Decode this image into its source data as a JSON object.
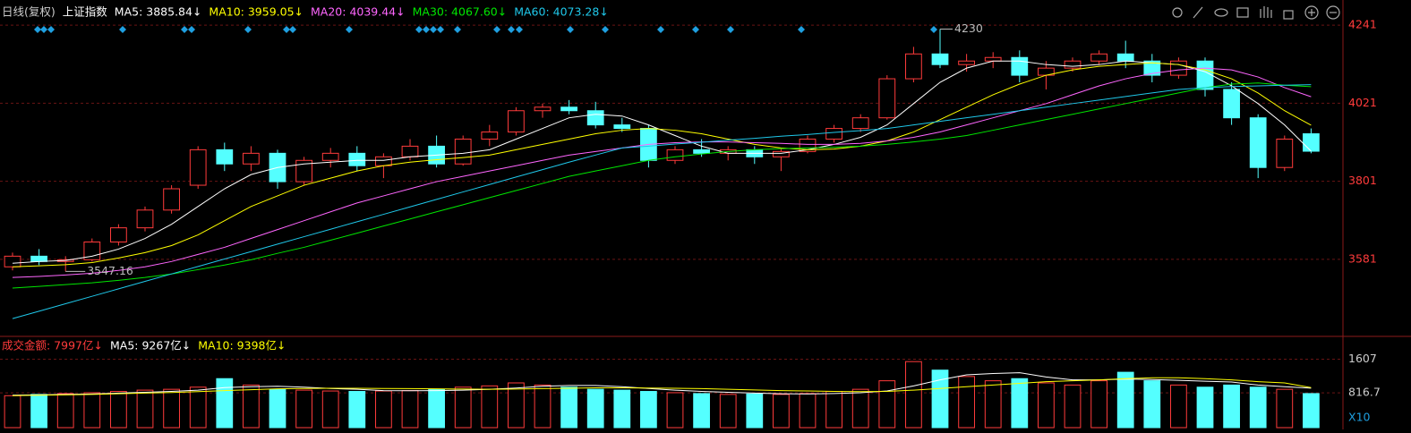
{
  "chart_data": [
    {
      "type": "candlestick",
      "title": "日线(复权)",
      "subtitle": "上证指数",
      "up_color": "#ff3b3b",
      "down_color": "#54ffff",
      "open": [
        3560,
        3590,
        3575,
        3580,
        3630,
        3670,
        3720,
        3790,
        3890,
        3850,
        3880,
        3800,
        3860,
        3880,
        3845,
        3870,
        3900,
        3850,
        3920,
        3940,
        4000,
        4010,
        4000,
        3960,
        3950,
        3860,
        3890,
        3880,
        3890,
        3870,
        3885,
        3920,
        3950,
        3980,
        4090,
        4160,
        4130,
        4140,
        4150,
        4100,
        4120,
        4140,
        4160,
        4140,
        4100,
        4140,
        4060,
        3980,
        3840,
        3935
      ],
      "high": [
        3600,
        3610,
        3590,
        3640,
        3680,
        3730,
        3790,
        3900,
        3910,
        3900,
        3890,
        3870,
        3895,
        3900,
        3880,
        3920,
        3930,
        3930,
        3960,
        4010,
        4020,
        4030,
        4025,
        3980,
        3960,
        3900,
        3920,
        3900,
        3900,
        3895,
        3930,
        3960,
        3990,
        4100,
        4180,
        4230,
        4160,
        4165,
        4170,
        4140,
        4150,
        4170,
        4197.23,
        4160,
        4150,
        4150,
        4080,
        3990,
        3930,
        3950
      ],
      "low": [
        3550,
        3565,
        3547.16,
        3575,
        3620,
        3660,
        3710,
        3780,
        3830,
        3830,
        3780,
        3790,
        3840,
        3830,
        3810,
        3860,
        3840,
        3845,
        3900,
        3930,
        3980,
        3990,
        3950,
        3940,
        3840,
        3850,
        3870,
        3860,
        3850,
        3830,
        3880,
        3910,
        3940,
        3975,
        4080,
        4120,
        4110,
        4120,
        4080,
        4060,
        4110,
        4130,
        4120,
        4080,
        4090,
        4040,
        3960,
        3810,
        3830,
        3880
      ],
      "close": [
        3590,
        3575,
        3580,
        3630,
        3670,
        3720,
        3780,
        3890,
        3850,
        3880,
        3800,
        3860,
        3880,
        3845,
        3870,
        3900,
        3850,
        3920,
        3940,
        4000,
        4010,
        4000,
        3960,
        3950,
        3860,
        3890,
        3880,
        3890,
        3870,
        3885,
        3920,
        3950,
        3980,
        4090,
        4160,
        4130,
        4140,
        4150,
        4100,
        4120,
        4140,
        4160,
        4140,
        4100,
        4140,
        4060,
        3980,
        3840,
        3920,
        3885.84
      ],
      "series": [
        {
          "name": "MA5: 3885.84↓",
          "color": "#ffffff",
          "values": [
            3570,
            3575,
            3578,
            3590,
            3610,
            3640,
            3680,
            3730,
            3780,
            3820,
            3840,
            3850,
            3855,
            3860,
            3860,
            3870,
            3875,
            3880,
            3890,
            3920,
            3950,
            3980,
            3990,
            3985,
            3960,
            3930,
            3900,
            3880,
            3880,
            3880,
            3890,
            3905,
            3925,
            3960,
            4020,
            4080,
            4120,
            4140,
            4140,
            4130,
            4125,
            4130,
            4140,
            4135,
            4130,
            4110,
            4070,
            4020,
            3960,
            3885.84
          ]
        },
        {
          "name": "MA10: 3959.05↓",
          "color": "#ffff00",
          "values": [
            3560,
            3563,
            3566,
            3572,
            3585,
            3600,
            3620,
            3650,
            3690,
            3730,
            3760,
            3790,
            3810,
            3830,
            3845,
            3855,
            3862,
            3868,
            3875,
            3890,
            3905,
            3920,
            3935,
            3945,
            3950,
            3945,
            3935,
            3920,
            3905,
            3895,
            3890,
            3892,
            3900,
            3915,
            3940,
            3975,
            4010,
            4045,
            4075,
            4100,
            4115,
            4125,
            4130,
            4135,
            4130,
            4115,
            4090,
            4050,
            4000,
            3959.05
          ]
        },
        {
          "name": "MA20: 4039.44↓",
          "color": "#ff66ff",
          "values": [
            3530,
            3533,
            3537,
            3542,
            3550,
            3560,
            3575,
            3595,
            3615,
            3640,
            3665,
            3690,
            3715,
            3740,
            3760,
            3780,
            3800,
            3815,
            3830,
            3845,
            3860,
            3875,
            3885,
            3895,
            3905,
            3910,
            3912,
            3912,
            3910,
            3908,
            3905,
            3905,
            3908,
            3915,
            3925,
            3940,
            3960,
            3980,
            4000,
            4020,
            4045,
            4070,
            4090,
            4105,
            4115,
            4120,
            4115,
            4095,
            4065,
            4039.44
          ]
        },
        {
          "name": "MA30: 4067.60↓",
          "color": "#00e600",
          "values": [
            3500,
            3505,
            3510,
            3515,
            3522,
            3530,
            3540,
            3552,
            3565,
            3580,
            3598,
            3615,
            3635,
            3655,
            3675,
            3695,
            3715,
            3735,
            3755,
            3775,
            3795,
            3815,
            3830,
            3845,
            3860,
            3870,
            3878,
            3885,
            3890,
            3893,
            3895,
            3897,
            3900,
            3905,
            3912,
            3920,
            3930,
            3945,
            3960,
            3975,
            3990,
            4005,
            4020,
            4035,
            4050,
            4065,
            4075,
            4078,
            4072,
            4067.6
          ]
        },
        {
          "name": "MA60: 4073.28↓",
          "color": "#1fc8ea",
          "values": [
            3414,
            3435,
            3456,
            3477,
            3498,
            3519,
            3540,
            3561,
            3582,
            3603,
            3624,
            3645,
            3666,
            3687,
            3708,
            3729,
            3750,
            3771,
            3792,
            3813,
            3834,
            3855,
            3875,
            3895,
            3900,
            3906,
            3911,
            3917,
            3922,
            3928,
            3933,
            3939,
            3944,
            3950,
            3960,
            3970,
            3980,
            3990,
            4000,
            4010,
            4020,
            4030,
            4040,
            4050,
            4060,
            4065,
            4068,
            4070,
            4072,
            4073.28
          ]
        }
      ],
      "ylim": [
        3364,
        4312
      ],
      "yticks": [
        4241,
        4021,
        3801,
        3581
      ],
      "grid": true
    },
    {
      "type": "bar",
      "title": "成交金额: 7997亿↓",
      "title_color": "#ff3b3b",
      "unit_label": "X10",
      "values": [
        750,
        780,
        800,
        820,
        850,
        880,
        900,
        950,
        1150,
        1000,
        900,
        880,
        860,
        850,
        860,
        870,
        900,
        950,
        980,
        1050,
        1000,
        950,
        900,
        880,
        850,
        820,
        800,
        780,
        790,
        780,
        800,
        850,
        900,
        1100,
        1550,
        1350,
        1200,
        1100,
        1150,
        1050,
        1000,
        1100,
        1300,
        1100,
        1000,
        950,
        1000,
        950,
        900,
        799.7
      ],
      "series": [
        {
          "name": "MA5: 9267亿↓",
          "color": "#ffffff",
          "values": [
            760,
            770,
            780,
            790,
            810,
            830,
            850,
            880,
            940,
            960,
            970,
            950,
            920,
            900,
            870,
            865,
            870,
            880,
            900,
            930,
            970,
            990,
            990,
            960,
            920,
            880,
            850,
            830,
            810,
            795,
            790,
            800,
            820,
            860,
            980,
            1120,
            1240,
            1270,
            1290,
            1190,
            1120,
            1120,
            1140,
            1130,
            1110,
            1090,
            1070,
            1000,
            960,
            926.7
          ]
        },
        {
          "name": "MA10: 9398亿↓",
          "color": "#ffff00",
          "values": [
            750,
            760,
            770,
            780,
            795,
            810,
            825,
            845,
            870,
            890,
            910,
            920,
            925,
            925,
            920,
            915,
            910,
            905,
            900,
            905,
            915,
            925,
            935,
            935,
            930,
            925,
            915,
            900,
            885,
            870,
            860,
            850,
            845,
            850,
            880,
            920,
            960,
            1000,
            1040,
            1080,
            1100,
            1120,
            1150,
            1170,
            1170,
            1150,
            1120,
            1080,
            1050,
            939.8
          ]
        }
      ],
      "ylim": [
        0,
        2100
      ],
      "yticks": [
        1607,
        816.7
      ]
    }
  ]
}
